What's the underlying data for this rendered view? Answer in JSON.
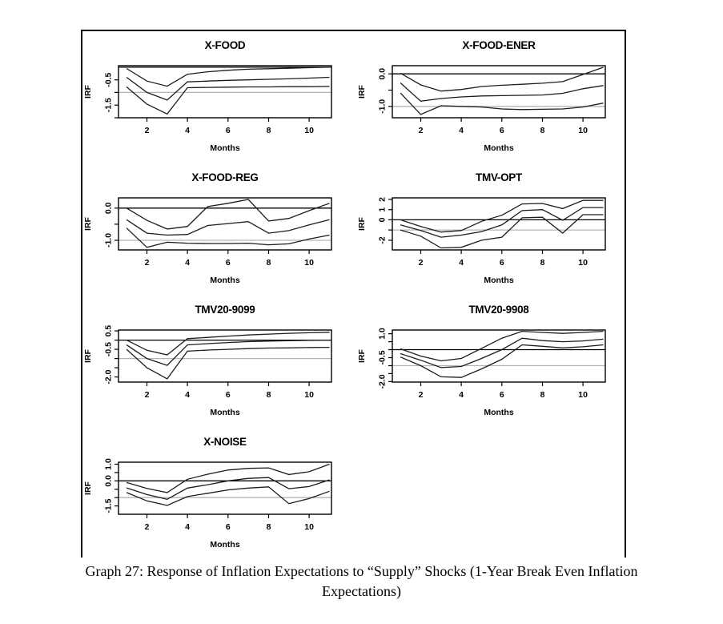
{
  "figure": {
    "caption_line1": "Graph 27: Response of Inflation Expectations to “Supply” Shocks (1-Year Break Even Inflation",
    "caption_line2": "Expectations)"
  },
  "colors": {
    "series_line": "#1c1c1c",
    "zero_line": "#000000",
    "reference_line": "#b5b5b5",
    "frame": "#000000"
  },
  "chart_data": [
    {
      "type": "line",
      "title": "X-FOOD",
      "xlabel": "Months",
      "ylabel": "IRF",
      "x": [
        1,
        2,
        3,
        4,
        5,
        6,
        7,
        8,
        9,
        10,
        11
      ],
      "xticks": [
        2,
        4,
        6,
        8,
        10
      ],
      "ylim": [
        -2.0,
        0.06
      ],
      "yticks": [
        {
          "v": -0.5,
          "label": "-0.5"
        },
        {
          "v": -1.0,
          "label": ""
        },
        {
          "v": -1.5,
          "label": "-1.5"
        },
        {
          "v": -2.0,
          "label": ""
        }
      ],
      "ref_lines": {
        "zero": 0,
        "gray": -1.0
      },
      "series": [
        {
          "name": "upper-band",
          "values": [
            -0.05,
            -0.55,
            -0.75,
            -0.28,
            -0.18,
            -0.12,
            -0.08,
            -0.06,
            -0.04,
            -0.02,
            0.0
          ]
        },
        {
          "name": "point-estimate",
          "values": [
            -0.4,
            -1.0,
            -1.3,
            -0.58,
            -0.55,
            -0.52,
            -0.5,
            -0.48,
            -0.46,
            -0.43,
            -0.4
          ]
        },
        {
          "name": "lower-band",
          "values": [
            -0.78,
            -1.46,
            -1.85,
            -0.81,
            -0.8,
            -0.79,
            -0.78,
            -0.78,
            -0.77,
            -0.77,
            -0.76
          ]
        }
      ]
    },
    {
      "type": "line",
      "title": "X-FOOD-ENER",
      "xlabel": "Months",
      "ylabel": "IRF",
      "x": [
        1,
        2,
        3,
        4,
        5,
        6,
        7,
        8,
        9,
        10,
        11
      ],
      "xticks": [
        2,
        4,
        6,
        8,
        10
      ],
      "ylim": [
        -1.35,
        0.25
      ],
      "yticks": [
        {
          "v": 0,
          "label": "0.0"
        },
        {
          "v": -0.5,
          "label": ""
        },
        {
          "v": -1.0,
          "label": "-1.0"
        }
      ],
      "ref_lines": {
        "zero": 0,
        "gray": -1.0
      },
      "series": [
        {
          "name": "upper-band",
          "values": [
            0.02,
            -0.34,
            -0.53,
            -0.48,
            -0.39,
            -0.35,
            -0.32,
            -0.29,
            -0.24,
            -0.02,
            0.2
          ]
        },
        {
          "name": "point-estimate",
          "values": [
            -0.28,
            -0.84,
            -0.76,
            -0.71,
            -0.68,
            -0.67,
            -0.66,
            -0.65,
            -0.6,
            -0.46,
            -0.36
          ]
        },
        {
          "name": "lower-band",
          "values": [
            -0.59,
            -1.25,
            -0.98,
            -1.0,
            -1.02,
            -1.08,
            -1.1,
            -1.09,
            -1.08,
            -1.02,
            -0.9
          ]
        }
      ]
    },
    {
      "type": "line",
      "title": "X-FOOD-REG",
      "xlabel": "Months",
      "ylabel": "IRF",
      "x": [
        1,
        2,
        3,
        4,
        5,
        6,
        7,
        8,
        9,
        10,
        11
      ],
      "xticks": [
        2,
        4,
        6,
        8,
        10
      ],
      "ylim": [
        -1.3,
        0.32
      ],
      "yticks": [
        {
          "v": 0,
          "label": "0.0"
        },
        {
          "v": -0.5,
          "label": ""
        },
        {
          "v": -1.0,
          "label": "-1.0"
        }
      ],
      "ref_lines": {
        "zero": 0,
        "gray": -1.0
      },
      "series": [
        {
          "name": "upper-band",
          "values": [
            0.0,
            -0.38,
            -0.65,
            -0.57,
            0.05,
            0.15,
            0.27,
            -0.4,
            -0.32,
            -0.08,
            0.15
          ]
        },
        {
          "name": "point-estimate",
          "values": [
            -0.36,
            -0.78,
            -0.84,
            -0.82,
            -0.54,
            -0.48,
            -0.42,
            -0.78,
            -0.7,
            -0.52,
            -0.36
          ]
        },
        {
          "name": "lower-band",
          "values": [
            -0.62,
            -1.22,
            -1.06,
            -1.09,
            -1.1,
            -1.1,
            -1.09,
            -1.14,
            -1.11,
            -0.96,
            -0.84
          ]
        }
      ]
    },
    {
      "type": "line",
      "title": "TMV-OPT",
      "xlabel": "Months",
      "ylabel": "IRF",
      "x": [
        1,
        2,
        3,
        4,
        5,
        6,
        7,
        8,
        9,
        10,
        11
      ],
      "xticks": [
        2,
        4,
        6,
        8,
        10
      ],
      "ylim": [
        -2.95,
        2.15
      ],
      "yticks": [
        {
          "v": 2,
          "label": "2"
        },
        {
          "v": 1,
          "label": "1"
        },
        {
          "v": 0,
          "label": "0"
        },
        {
          "v": -1,
          "label": ""
        },
        {
          "v": -2,
          "label": "-2"
        }
      ],
      "ref_lines": {
        "zero": 0,
        "gray": -1.0
      },
      "series": [
        {
          "name": "upper-band",
          "values": [
            0.0,
            -0.65,
            -1.2,
            -1.05,
            -0.15,
            0.45,
            1.55,
            1.6,
            1.1,
            1.9,
            1.9
          ]
        },
        {
          "name": "point-estimate",
          "values": [
            -0.5,
            -1.05,
            -1.7,
            -1.5,
            -1.15,
            -0.5,
            0.9,
            1.0,
            -0.05,
            1.2,
            1.2
          ]
        },
        {
          "name": "lower-band",
          "values": [
            -1.0,
            -1.6,
            -2.75,
            -2.7,
            -2.0,
            -1.7,
            0.2,
            0.25,
            -1.3,
            0.5,
            0.5
          ]
        }
      ]
    },
    {
      "type": "line",
      "title": "TMV20-9099",
      "xlabel": "Months",
      "ylabel": "IRF",
      "x": [
        1,
        2,
        3,
        4,
        5,
        6,
        7,
        8,
        9,
        10,
        11
      ],
      "xticks": [
        2,
        4,
        6,
        8,
        10
      ],
      "ylim": [
        -2.28,
        0.55
      ],
      "yticks": [
        {
          "v": 0.5,
          "label": "0.5"
        },
        {
          "v": 0,
          "label": ""
        },
        {
          "v": -0.5,
          "label": "-0.5"
        },
        {
          "v": -1.0,
          "label": ""
        },
        {
          "v": -1.5,
          "label": ""
        },
        {
          "v": -2.0,
          "label": "-2.0"
        }
      ],
      "ref_lines": {
        "zero": 0,
        "gray": -1.0
      },
      "series": [
        {
          "name": "upper-band",
          "values": [
            0.0,
            -0.55,
            -0.8,
            0.08,
            0.15,
            0.22,
            0.28,
            0.33,
            0.37,
            0.4,
            0.43
          ]
        },
        {
          "name": "point-estimate",
          "values": [
            -0.26,
            -1.0,
            -1.37,
            -0.26,
            -0.19,
            -0.13,
            -0.08,
            -0.05,
            -0.03,
            -0.01,
            0.0
          ]
        },
        {
          "name": "lower-band",
          "values": [
            -0.5,
            -1.5,
            -2.1,
            -0.6,
            -0.54,
            -0.5,
            -0.46,
            -0.43,
            -0.42,
            -0.4,
            -0.39
          ]
        }
      ]
    },
    {
      "type": "line",
      "title": "TMV20-9908",
      "xlabel": "Months",
      "ylabel": "IRF",
      "x": [
        1,
        2,
        3,
        4,
        5,
        6,
        7,
        8,
        9,
        10,
        11
      ],
      "xticks": [
        2,
        4,
        6,
        8,
        10
      ],
      "ylim": [
        -2.03,
        1.23
      ],
      "yticks": [
        {
          "v": 1.0,
          "label": "1.0"
        },
        {
          "v": 0.5,
          "label": ""
        },
        {
          "v": 0,
          "label": ""
        },
        {
          "v": -0.5,
          "label": "-0.5"
        },
        {
          "v": -1.0,
          "label": ""
        },
        {
          "v": -1.5,
          "label": ""
        },
        {
          "v": -2.0,
          "label": "-2.0"
        }
      ],
      "ref_lines": {
        "zero": 0,
        "gray": -1.0
      },
      "series": [
        {
          "name": "upper-band",
          "values": [
            0.05,
            -0.4,
            -0.7,
            -0.55,
            0.08,
            0.72,
            1.15,
            1.08,
            1.02,
            1.08,
            1.15
          ]
        },
        {
          "name": "point-estimate",
          "values": [
            -0.25,
            -0.66,
            -1.12,
            -1.05,
            -0.55,
            0.0,
            0.72,
            0.57,
            0.5,
            0.55,
            0.66
          ]
        },
        {
          "name": "lower-band",
          "values": [
            -0.46,
            -1.0,
            -1.7,
            -1.74,
            -1.2,
            -0.6,
            0.3,
            0.21,
            0.11,
            0.18,
            0.3
          ]
        }
      ]
    },
    {
      "type": "line",
      "title": "X-NOISE",
      "xlabel": "Months",
      "ylabel": "IRF",
      "x": [
        1,
        2,
        3,
        4,
        5,
        6,
        7,
        8,
        9,
        10,
        11
      ],
      "xticks": [
        2,
        4,
        6,
        8,
        10
      ],
      "ylim": [
        -2.0,
        1.12
      ],
      "yticks": [
        {
          "v": 1.0,
          "label": "1.0"
        },
        {
          "v": 0.5,
          "label": ""
        },
        {
          "v": 0,
          "label": "0.0"
        },
        {
          "v": -0.5,
          "label": ""
        },
        {
          "v": -1.0,
          "label": ""
        },
        {
          "v": -1.5,
          "label": "-1.5"
        }
      ],
      "ref_lines": {
        "zero": 0,
        "gray": -1.0
      },
      "series": [
        {
          "name": "upper-band",
          "values": [
            -0.1,
            -0.45,
            -0.7,
            0.1,
            0.4,
            0.65,
            0.75,
            0.78,
            0.38,
            0.55,
            1.0
          ]
        },
        {
          "name": "point-estimate",
          "values": [
            -0.42,
            -0.82,
            -1.1,
            -0.43,
            -0.23,
            0.0,
            0.15,
            0.2,
            -0.47,
            -0.34,
            0.06
          ]
        },
        {
          "name": "lower-band",
          "values": [
            -0.7,
            -1.2,
            -1.47,
            -0.94,
            -0.74,
            -0.54,
            -0.43,
            -0.36,
            -1.36,
            -1.06,
            -0.62
          ]
        }
      ]
    }
  ]
}
